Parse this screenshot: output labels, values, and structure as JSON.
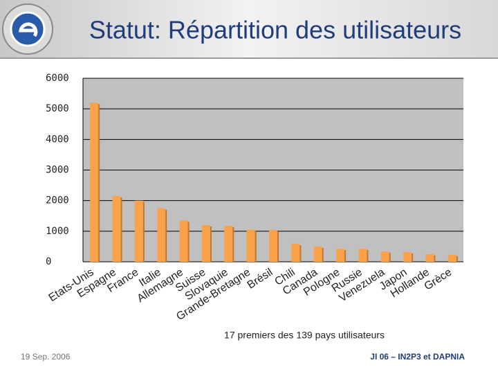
{
  "chart_data": {
    "type": "bar",
    "title": "Statut: Répartition des utilisateurs",
    "caption": "17 premiers des 139 pays utilisateurs",
    "categories": [
      "Etats-Unis",
      "Espagne",
      "France",
      "Italie",
      "Allemagne",
      "Suisse",
      "Slovaquie",
      "Grande-Bretagne",
      "Brésil",
      "Chili",
      "Canada",
      "Pologne",
      "Russie",
      "Venezuela",
      "Japon",
      "Hollande",
      "Grèce"
    ],
    "values": [
      5200,
      2150,
      2000,
      1750,
      1350,
      1200,
      1180,
      1050,
      1040,
      590,
      500,
      430,
      430,
      340,
      320,
      250,
      230
    ],
    "color": "#f9a24a",
    "ylim": [
      0,
      6000
    ],
    "yticks": [
      0,
      1000,
      2000,
      3000,
      4000,
      5000,
      6000
    ],
    "grid": true
  },
  "footer": {
    "date": "19 Sep. 2006",
    "event": "JI 06 – IN2P3 et DAPNIA"
  }
}
